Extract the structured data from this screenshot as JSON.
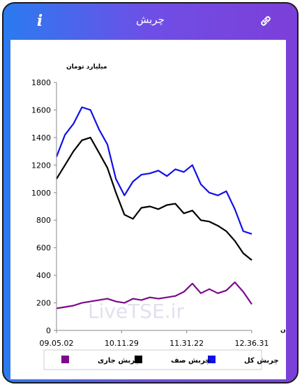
{
  "header": {
    "title": "چربش",
    "info_icon": "info-icon",
    "link_icon": "link-icon"
  },
  "colors": {
    "gradient_start": "#2a7bf0",
    "gradient_end": "#7c3fd8",
    "total": "#1010e8",
    "queue": "#000000",
    "current": "#7b0a8a"
  },
  "watermark": "LiveTSE.ir",
  "chart_data": {
    "type": "line",
    "ylabel": "میلیارد تومان",
    "xlabel": "زمان",
    "ylim": [
      0,
      1800
    ],
    "yticks": [
      0,
      200,
      400,
      600,
      800,
      1000,
      1200,
      1400,
      1600,
      1800
    ],
    "xticks": [
      "09.05.02",
      "10.11.29",
      "11.31.22",
      "12.36.31"
    ],
    "legend": "bottom",
    "x": [
      "09.05.02",
      "09.15",
      "09.25",
      "09.35",
      "09.45",
      "09.55",
      "10.05",
      "10.15",
      "10.25",
      "10.11.29",
      "10.45",
      "10.55",
      "11.05",
      "11.15",
      "11.25",
      "11.31.22",
      "11.45",
      "11.55",
      "12.05",
      "12.15",
      "12.25",
      "12.30",
      "12.33",
      "12.36.31"
    ],
    "series": [
      {
        "name": "چربش کل",
        "color": "#1010e8",
        "values": [
          1260,
          1420,
          1500,
          1620,
          1600,
          1460,
          1350,
          1100,
          980,
          1080,
          1130,
          1140,
          1160,
          1120,
          1170,
          1150,
          1200,
          1060,
          1000,
          980,
          1010,
          880,
          720,
          700
        ]
      },
      {
        "name": "چربش صف",
        "color": "#000000",
        "values": [
          1100,
          1200,
          1300,
          1380,
          1400,
          1290,
          1180,
          1000,
          840,
          810,
          890,
          900,
          880,
          910,
          920,
          850,
          870,
          800,
          790,
          760,
          720,
          650,
          560,
          510
        ]
      },
      {
        "name": "چربش جاری",
        "color": "#7b0a8a",
        "values": [
          160,
          170,
          180,
          200,
          210,
          220,
          230,
          210,
          200,
          230,
          220,
          240,
          230,
          240,
          250,
          280,
          340,
          270,
          300,
          270,
          290,
          350,
          280,
          190
        ]
      }
    ]
  }
}
